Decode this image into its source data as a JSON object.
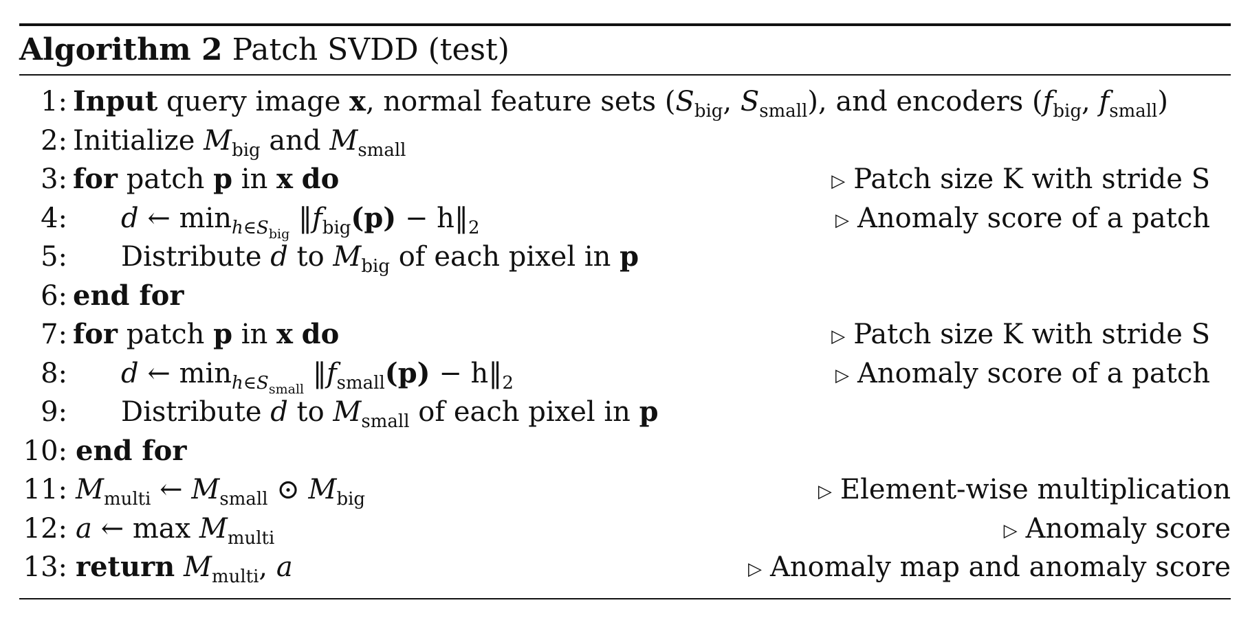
{
  "algorithm": {
    "label": "Algorithm 2",
    "title": "Patch SVDD (test)"
  },
  "lines": [
    {
      "num": "1:",
      "comment": ""
    },
    {
      "num": "2:",
      "comment": ""
    },
    {
      "num": "3:",
      "comment": "Patch size K with stride S"
    },
    {
      "num": "4:",
      "comment": "Anomaly score of a patch"
    },
    {
      "num": "5:",
      "comment": ""
    },
    {
      "num": "6:",
      "comment": ""
    },
    {
      "num": "7:",
      "comment": "Patch size K with stride S"
    },
    {
      "num": "8:",
      "comment": "Anomaly score of a patch"
    },
    {
      "num": "9:",
      "comment": ""
    },
    {
      "num": "10:",
      "comment": ""
    },
    {
      "num": "11:",
      "comment": "Element-wise multiplication"
    },
    {
      "num": "12:",
      "comment": "Anomaly score"
    },
    {
      "num": "13:",
      "comment": "Anomaly map and anomaly score"
    }
  ],
  "tokens": {
    "input": "Input",
    "query_image": "query image",
    "x": "x",
    "normal_feature_sets": ", normal feature sets (",
    "S": "S",
    "big": "big",
    "small": "small",
    "multi": "multi",
    "comma": ", ",
    "and_encoders": "), and encoders (",
    "f": "f",
    "close_paren": ")",
    "initialize": "Initialize",
    "M": "M",
    "and": "and",
    "for": "for",
    "patch": "patch",
    "p": "p",
    "in": "in",
    "do": "do",
    "d": "d",
    "arrow": "←",
    "min": "min",
    "h_in": "h∈",
    "norm_open": "‖",
    "paren_p": "(p)",
    "minus_h": " − h",
    "norm_close": "‖",
    "two": "2",
    "distribute": "Distribute",
    "to": "to",
    "of_each_pixel_in": "of each pixel in",
    "end_for": "end for",
    "odot": "⊙",
    "a": "a",
    "max": "max",
    "return": "return",
    "triangle": "▷"
  }
}
